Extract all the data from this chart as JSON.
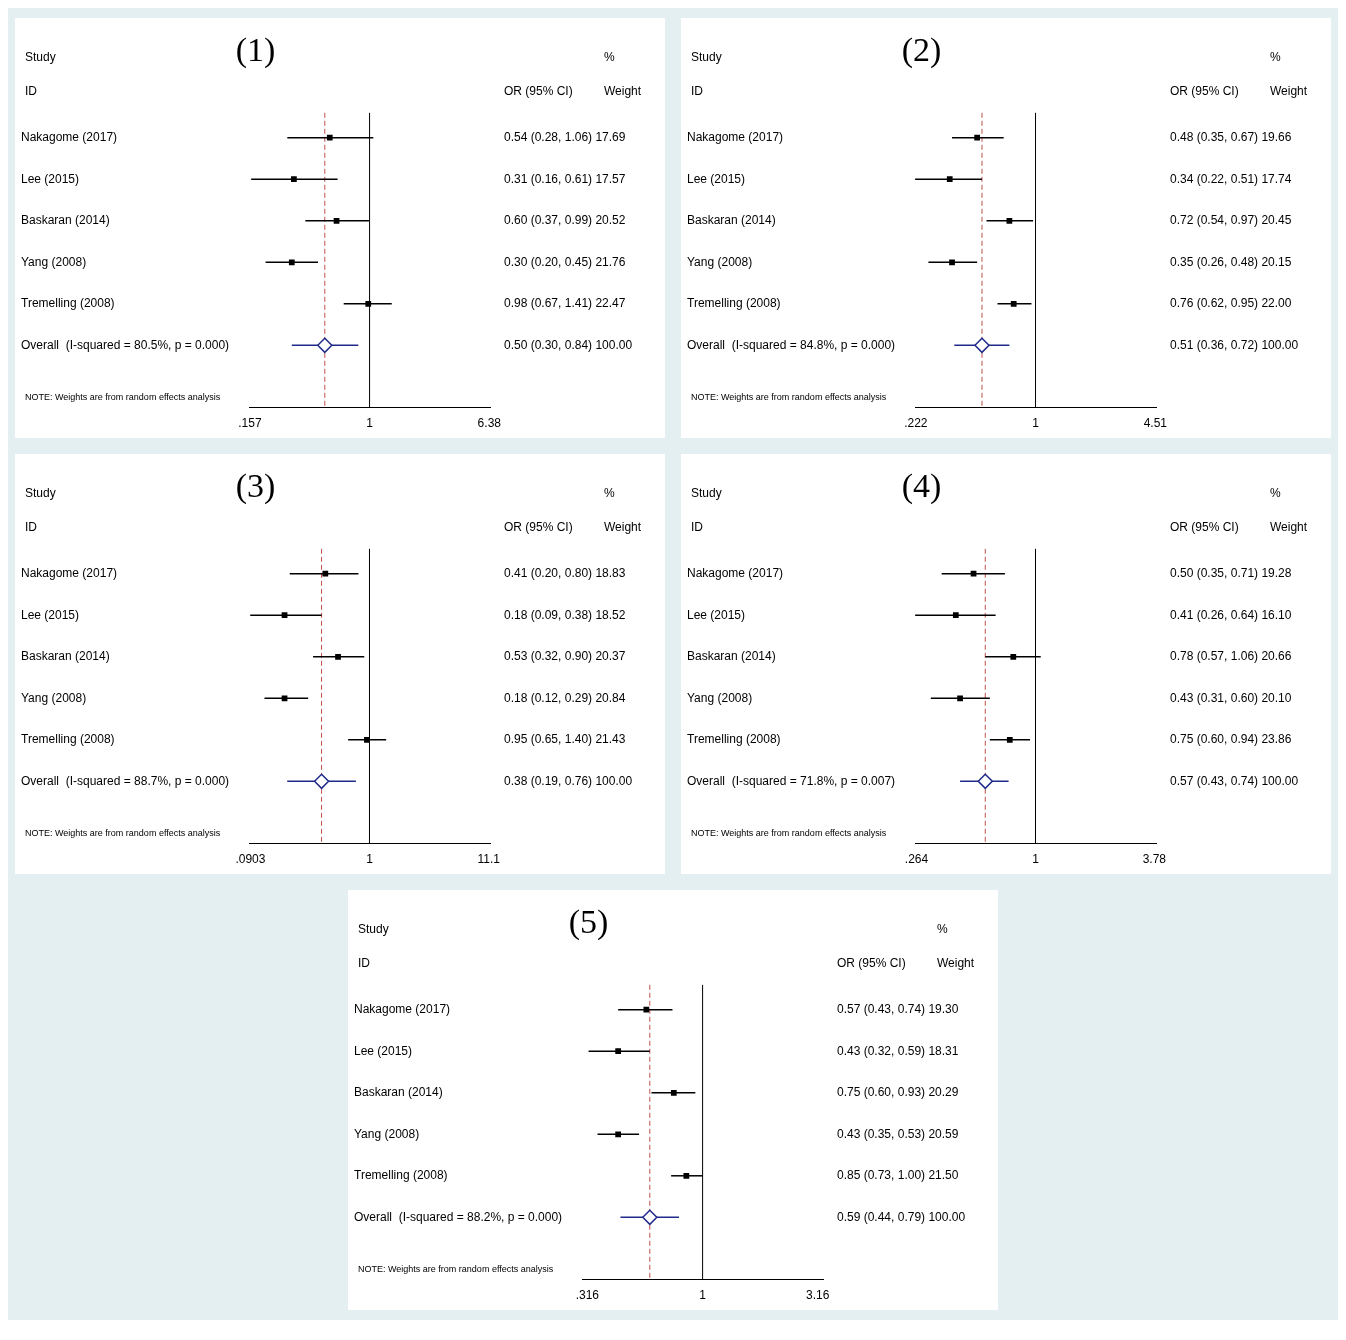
{
  "chart_data": [
    {
      "type": "scatter",
      "title": "(1)",
      "orientation": "horizontal",
      "log": "x",
      "xlim": [
        0.155,
        6.45
      ],
      "xticks": [
        {
          "value": 0.157,
          "label": ".157"
        },
        1,
        6.38
      ],
      "categories": [
        "Nakagome (2017)",
        "Lee (2015)",
        "Baskaran (2014)",
        "Yang (2008)",
        "Tremelling (2008)",
        "Overall  (I-squared = 80.5%, p = 0.000)"
      ],
      "series": [
        {
          "color": "#000000",
          "marker": "square",
          "values": [
            0.54,
            0.31,
            0.6,
            0.3,
            0.98,
            null
          ],
          "errors": [
            [
              0.28,
              1.06
            ],
            [
              0.16,
              0.61
            ],
            [
              0.37,
              0.99
            ],
            [
              0.2,
              0.45
            ],
            [
              0.67,
              1.41
            ],
            null
          ],
          "value_labels": [
            "0.54 (0.28, 1.06) 17.69",
            "0.31 (0.16, 0.61) 17.57",
            "0.60 (0.37, 0.99) 20.52",
            "0.30 (0.20, 0.45) 21.76",
            "0.98 (0.67, 1.41) 22.47",
            null
          ]
        },
        {
          "color": "#1f2a8a",
          "marker": "diamond",
          "values": [
            null,
            null,
            null,
            null,
            null,
            0.5
          ],
          "errors": [
            null,
            null,
            null,
            null,
            null,
            [
              0.3,
              0.84
            ]
          ],
          "value_labels": [
            null,
            null,
            null,
            null,
            null,
            null
          ]
        }
      ],
      "ref_lines": [
        {
          "axis": "x",
          "value": 1,
          "color": "#000000"
        },
        {
          "axis": "x",
          "value": 0.5,
          "color": "#c0504d",
          "line_style": "dashed"
        }
      ],
      "annotations": [
        "Study",
        "ID",
        "OR (95% CI)",
        "%",
        "Weight",
        "0.50 (0.30, 0.84) 100.00",
        "NOTE: Weights are from random effects analysis"
      ]
    },
    {
      "type": "scatter",
      "title": "(2)",
      "orientation": "horizontal",
      "log": "x",
      "xlim": [
        0.22,
        4.55
      ],
      "xticks": [
        {
          "value": 0.222,
          "label": ".222"
        },
        1,
        4.51
      ],
      "categories": [
        "Nakagome (2017)",
        "Lee (2015)",
        "Baskaran (2014)",
        "Yang (2008)",
        "Tremelling (2008)",
        "Overall  (I-squared = 84.8%, p = 0.000)"
      ],
      "series": [
        {
          "color": "#000000",
          "marker": "square",
          "values": [
            0.48,
            0.34,
            0.72,
            0.35,
            0.76,
            null
          ],
          "errors": [
            [
              0.35,
              0.67
            ],
            [
              0.22,
              0.51
            ],
            [
              0.54,
              0.97
            ],
            [
              0.26,
              0.48
            ],
            [
              0.62,
              0.95
            ],
            null
          ],
          "value_labels": [
            "0.48 (0.35, 0.67) 19.66",
            "0.34 (0.22, 0.51) 17.74",
            "0.72 (0.54, 0.97) 20.45",
            "0.35 (0.26, 0.48) 20.15",
            "0.76 (0.62, 0.95) 22.00",
            null
          ]
        },
        {
          "color": "#1f2a8a",
          "marker": "diamond",
          "values": [
            null,
            null,
            null,
            null,
            null,
            0.51
          ],
          "errors": [
            null,
            null,
            null,
            null,
            null,
            [
              0.36,
              0.72
            ]
          ],
          "value_labels": [
            null,
            null,
            null,
            null,
            null,
            null
          ]
        }
      ],
      "ref_lines": [
        {
          "axis": "x",
          "value": 1,
          "color": "#000000"
        },
        {
          "axis": "x",
          "value": 0.51,
          "color": "#c0504d",
          "line_style": "dashed"
        }
      ],
      "annotations": [
        "Study",
        "ID",
        "OR (95% CI)",
        "%",
        "Weight",
        "0.51 (0.36, 0.72) 100.00",
        "NOTE: Weights are from random effects analysis"
      ]
    },
    {
      "type": "scatter",
      "title": "(3)",
      "orientation": "horizontal",
      "log": "x",
      "xlim": [
        0.088,
        11.4
      ],
      "xticks": [
        {
          "value": 0.0903,
          "label": ".0903"
        },
        1,
        11.1
      ],
      "categories": [
        "Nakagome (2017)",
        "Lee (2015)",
        "Baskaran (2014)",
        "Yang (2008)",
        "Tremelling (2008)",
        "Overall  (I-squared = 88.7%, p = 0.000)"
      ],
      "series": [
        {
          "color": "#000000",
          "marker": "square",
          "values": [
            0.41,
            0.18,
            0.53,
            0.18,
            0.95,
            null
          ],
          "errors": [
            [
              0.2,
              0.8
            ],
            [
              0.09,
              0.38
            ],
            [
              0.32,
              0.9
            ],
            [
              0.12,
              0.29
            ],
            [
              0.65,
              1.4
            ],
            null
          ],
          "value_labels": [
            "0.41 (0.20, 0.80) 18.83",
            "0.18 (0.09, 0.38) 18.52",
            "0.53 (0.32, 0.90) 20.37",
            "0.18 (0.12, 0.29) 20.84",
            "0.95 (0.65, 1.40) 21.43",
            null
          ]
        },
        {
          "color": "#1f2a8a",
          "marker": "diamond",
          "values": [
            null,
            null,
            null,
            null,
            null,
            0.38
          ],
          "errors": [
            null,
            null,
            null,
            null,
            null,
            [
              0.19,
              0.76
            ]
          ],
          "value_labels": [
            null,
            null,
            null,
            null,
            null,
            null
          ]
        }
      ],
      "ref_lines": [
        {
          "axis": "x",
          "value": 1,
          "color": "#000000"
        },
        {
          "axis": "x",
          "value": 0.38,
          "color": "#c0504d",
          "line_style": "dashed"
        }
      ],
      "annotations": [
        "Study",
        "ID",
        "OR (95% CI)",
        "%",
        "Weight",
        "0.38 (0.19, 0.76) 100.00",
        "NOTE: Weights are from random effects analysis"
      ]
    },
    {
      "type": "scatter",
      "title": "(4)",
      "orientation": "horizontal",
      "log": "x",
      "xlim": [
        0.26,
        3.85
      ],
      "xticks": [
        {
          "value": 0.264,
          "label": ".264"
        },
        1,
        3.78
      ],
      "categories": [
        "Nakagome (2017)",
        "Lee (2015)",
        "Baskaran (2014)",
        "Yang (2008)",
        "Tremelling (2008)",
        "Overall  (I-squared = 71.8%, p = 0.007)"
      ],
      "series": [
        {
          "color": "#000000",
          "marker": "square",
          "values": [
            0.5,
            0.41,
            0.78,
            0.43,
            0.75,
            null
          ],
          "errors": [
            [
              0.35,
              0.71
            ],
            [
              0.26,
              0.64
            ],
            [
              0.57,
              1.06
            ],
            [
              0.31,
              0.6
            ],
            [
              0.6,
              0.94
            ],
            null
          ],
          "value_labels": [
            "0.50 (0.35, 0.71) 19.28",
            "0.41 (0.26, 0.64) 16.10",
            "0.78 (0.57, 1.06) 20.66",
            "0.43 (0.31, 0.60) 20.10",
            "0.75 (0.60, 0.94) 23.86",
            null
          ]
        },
        {
          "color": "#1f2a8a",
          "marker": "diamond",
          "values": [
            null,
            null,
            null,
            null,
            null,
            0.57
          ],
          "errors": [
            null,
            null,
            null,
            null,
            null,
            [
              0.43,
              0.74
            ]
          ],
          "value_labels": [
            null,
            null,
            null,
            null,
            null,
            null
          ]
        }
      ],
      "ref_lines": [
        {
          "axis": "x",
          "value": 1,
          "color": "#000000"
        },
        {
          "axis": "x",
          "value": 0.57,
          "color": "#c0504d",
          "line_style": "dashed"
        }
      ],
      "annotations": [
        "Study",
        "ID",
        "OR (95% CI)",
        "%",
        "Weight",
        "0.57 (0.43, 0.74) 100.00",
        "NOTE: Weights are from random effects analysis"
      ]
    },
    {
      "type": "scatter",
      "title": "(5)",
      "orientation": "horizontal",
      "log": "x",
      "xlim": [
        0.3,
        3.33
      ],
      "xticks": [
        {
          "value": 0.316,
          "label": ".316"
        },
        1,
        3.16
      ],
      "categories": [
        "Nakagome (2017)",
        "Lee (2015)",
        "Baskaran (2014)",
        "Yang (2008)",
        "Tremelling (2008)",
        "Overall  (I-squared = 88.2%, p = 0.000)"
      ],
      "series": [
        {
          "color": "#000000",
          "marker": "square",
          "values": [
            0.57,
            0.43,
            0.75,
            0.43,
            0.85,
            null
          ],
          "errors": [
            [
              0.43,
              0.74
            ],
            [
              0.32,
              0.59
            ],
            [
              0.6,
              0.93
            ],
            [
              0.35,
              0.53
            ],
            [
              0.73,
              1.0
            ],
            null
          ],
          "value_labels": [
            "0.57 (0.43, 0.74) 19.30",
            "0.43 (0.32, 0.59) 18.31",
            "0.75 (0.60, 0.93) 20.29",
            "0.43 (0.35, 0.53) 20.59",
            "0.85 (0.73, 1.00) 21.50",
            null
          ]
        },
        {
          "color": "#1f2a8a",
          "marker": "diamond",
          "values": [
            null,
            null,
            null,
            null,
            null,
            0.59
          ],
          "errors": [
            null,
            null,
            null,
            null,
            null,
            [
              0.44,
              0.79
            ]
          ],
          "value_labels": [
            null,
            null,
            null,
            null,
            null,
            null
          ]
        }
      ],
      "ref_lines": [
        {
          "axis": "x",
          "value": 1,
          "color": "#000000"
        },
        {
          "axis": "x",
          "value": 0.59,
          "color": "#c0504d",
          "line_style": "dashed"
        }
      ],
      "annotations": [
        "Study",
        "ID",
        "OR (95% CI)",
        "%",
        "Weight",
        "0.59 (0.44, 0.79) 100.00",
        "NOTE: Weights are from random effects analysis"
      ]
    }
  ]
}
